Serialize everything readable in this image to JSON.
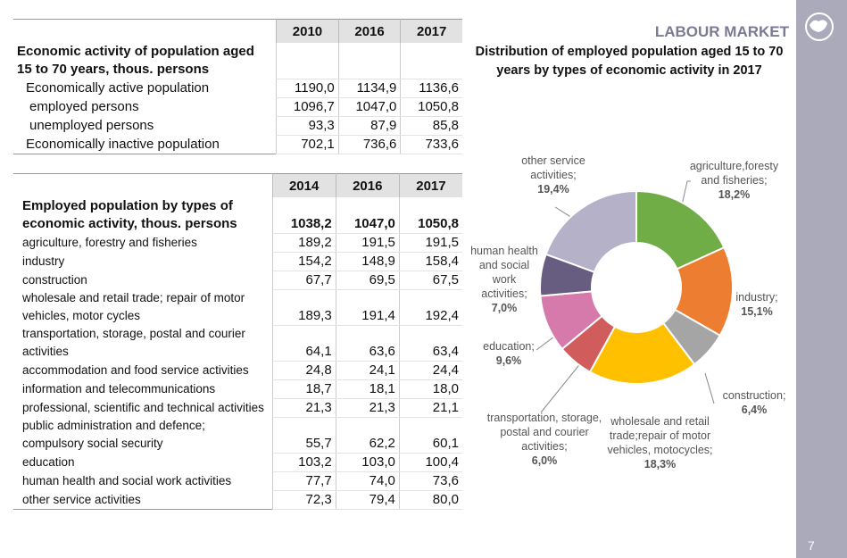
{
  "header": {
    "title": "LABOUR MARKET",
    "page_number": "7"
  },
  "table1": {
    "years": [
      "2010",
      "2016",
      "2017"
    ],
    "rows": [
      {
        "label": "Economic activity of population aged 15 to 70 years, thous. persons",
        "values": []
      },
      {
        "label": "Economically active population",
        "values": [
          "1190,0",
          "1134,9",
          "1136,6"
        ]
      },
      {
        "label": "employed persons",
        "values": [
          "1096,7",
          "1047,0",
          "1050,8"
        ]
      },
      {
        "label": "unemployed persons",
        "values": [
          "93,3",
          "87,9",
          "85,8"
        ]
      },
      {
        "label": "Economically inactive population",
        "values": [
          "702,1",
          "736,6",
          "733,6"
        ]
      }
    ]
  },
  "table2": {
    "years": [
      "2014",
      "2016",
      "2017"
    ],
    "rows": [
      {
        "label": "Employed population by types of economic activity, thous. persons",
        "values": [
          "1038,2",
          "1047,0",
          "1050,8"
        ]
      },
      {
        "label": "agriculture, forestry and fisheries",
        "values": [
          "189,2",
          "191,5",
          "191,5"
        ]
      },
      {
        "label": "industry",
        "values": [
          "154,2",
          "148,9",
          "158,4"
        ]
      },
      {
        "label": "construction",
        "values": [
          "67,7",
          "69,5",
          "67,5"
        ]
      },
      {
        "label": "wholesale and retail trade; repair of motor vehicles, motor cycles",
        "values": [
          "189,3",
          "191,4",
          "192,4"
        ]
      },
      {
        "label": "transportation, storage, postal and courier activities",
        "values": [
          "64,1",
          "63,6",
          "63,4"
        ]
      },
      {
        "label": "accommodation and food service activities",
        "values": [
          "24,8",
          "24,1",
          "24,4"
        ]
      },
      {
        "label": "information and telecommunications",
        "values": [
          "18,7",
          "18,1",
          "18,0"
        ]
      },
      {
        "label": "professional, scientific and technical activities",
        "values": [
          "21,3",
          "21,3",
          "21,1"
        ]
      },
      {
        "label": "public administration and defence; compulsory social security",
        "values": [
          "55,7",
          "62,2",
          "60,1"
        ]
      },
      {
        "label": "education",
        "values": [
          "103,2",
          "103,0",
          "100,4"
        ]
      },
      {
        "label": "human health and social work activities",
        "values": [
          "77,7",
          "74,0",
          "73,6"
        ]
      },
      {
        "label": "other service activities",
        "values": [
          "72,3",
          "79,4",
          "80,0"
        ]
      }
    ]
  },
  "chart_data": {
    "type": "donut",
    "title": "Distribution of employed population aged 15 to 70 years by types of economic activity in 2017",
    "categories": [
      "agriculture,foresty and fisheries;",
      "industry;",
      "construction;",
      "wholesale and retail trade;repair of motor vehicles, motocycles;",
      "transportation, storage, postal and courier activities;",
      "education;",
      "human health and social work activities;",
      "other service activities;"
    ],
    "values": [
      18.2,
      15.1,
      6.4,
      18.3,
      6.0,
      9.6,
      7.0,
      19.4
    ],
    "value_labels": [
      "18,2%",
      "15,1%",
      "6,4%",
      "18,3%",
      "6,0%",
      "9,6%",
      "7,0%",
      "19,4%"
    ],
    "colors": [
      "#70ad47",
      "#ed7d31",
      "#a5a5a5",
      "#ffc000",
      "#d05c5c",
      "#d57aaa",
      "#675d80",
      "#b5b1c9"
    ]
  }
}
